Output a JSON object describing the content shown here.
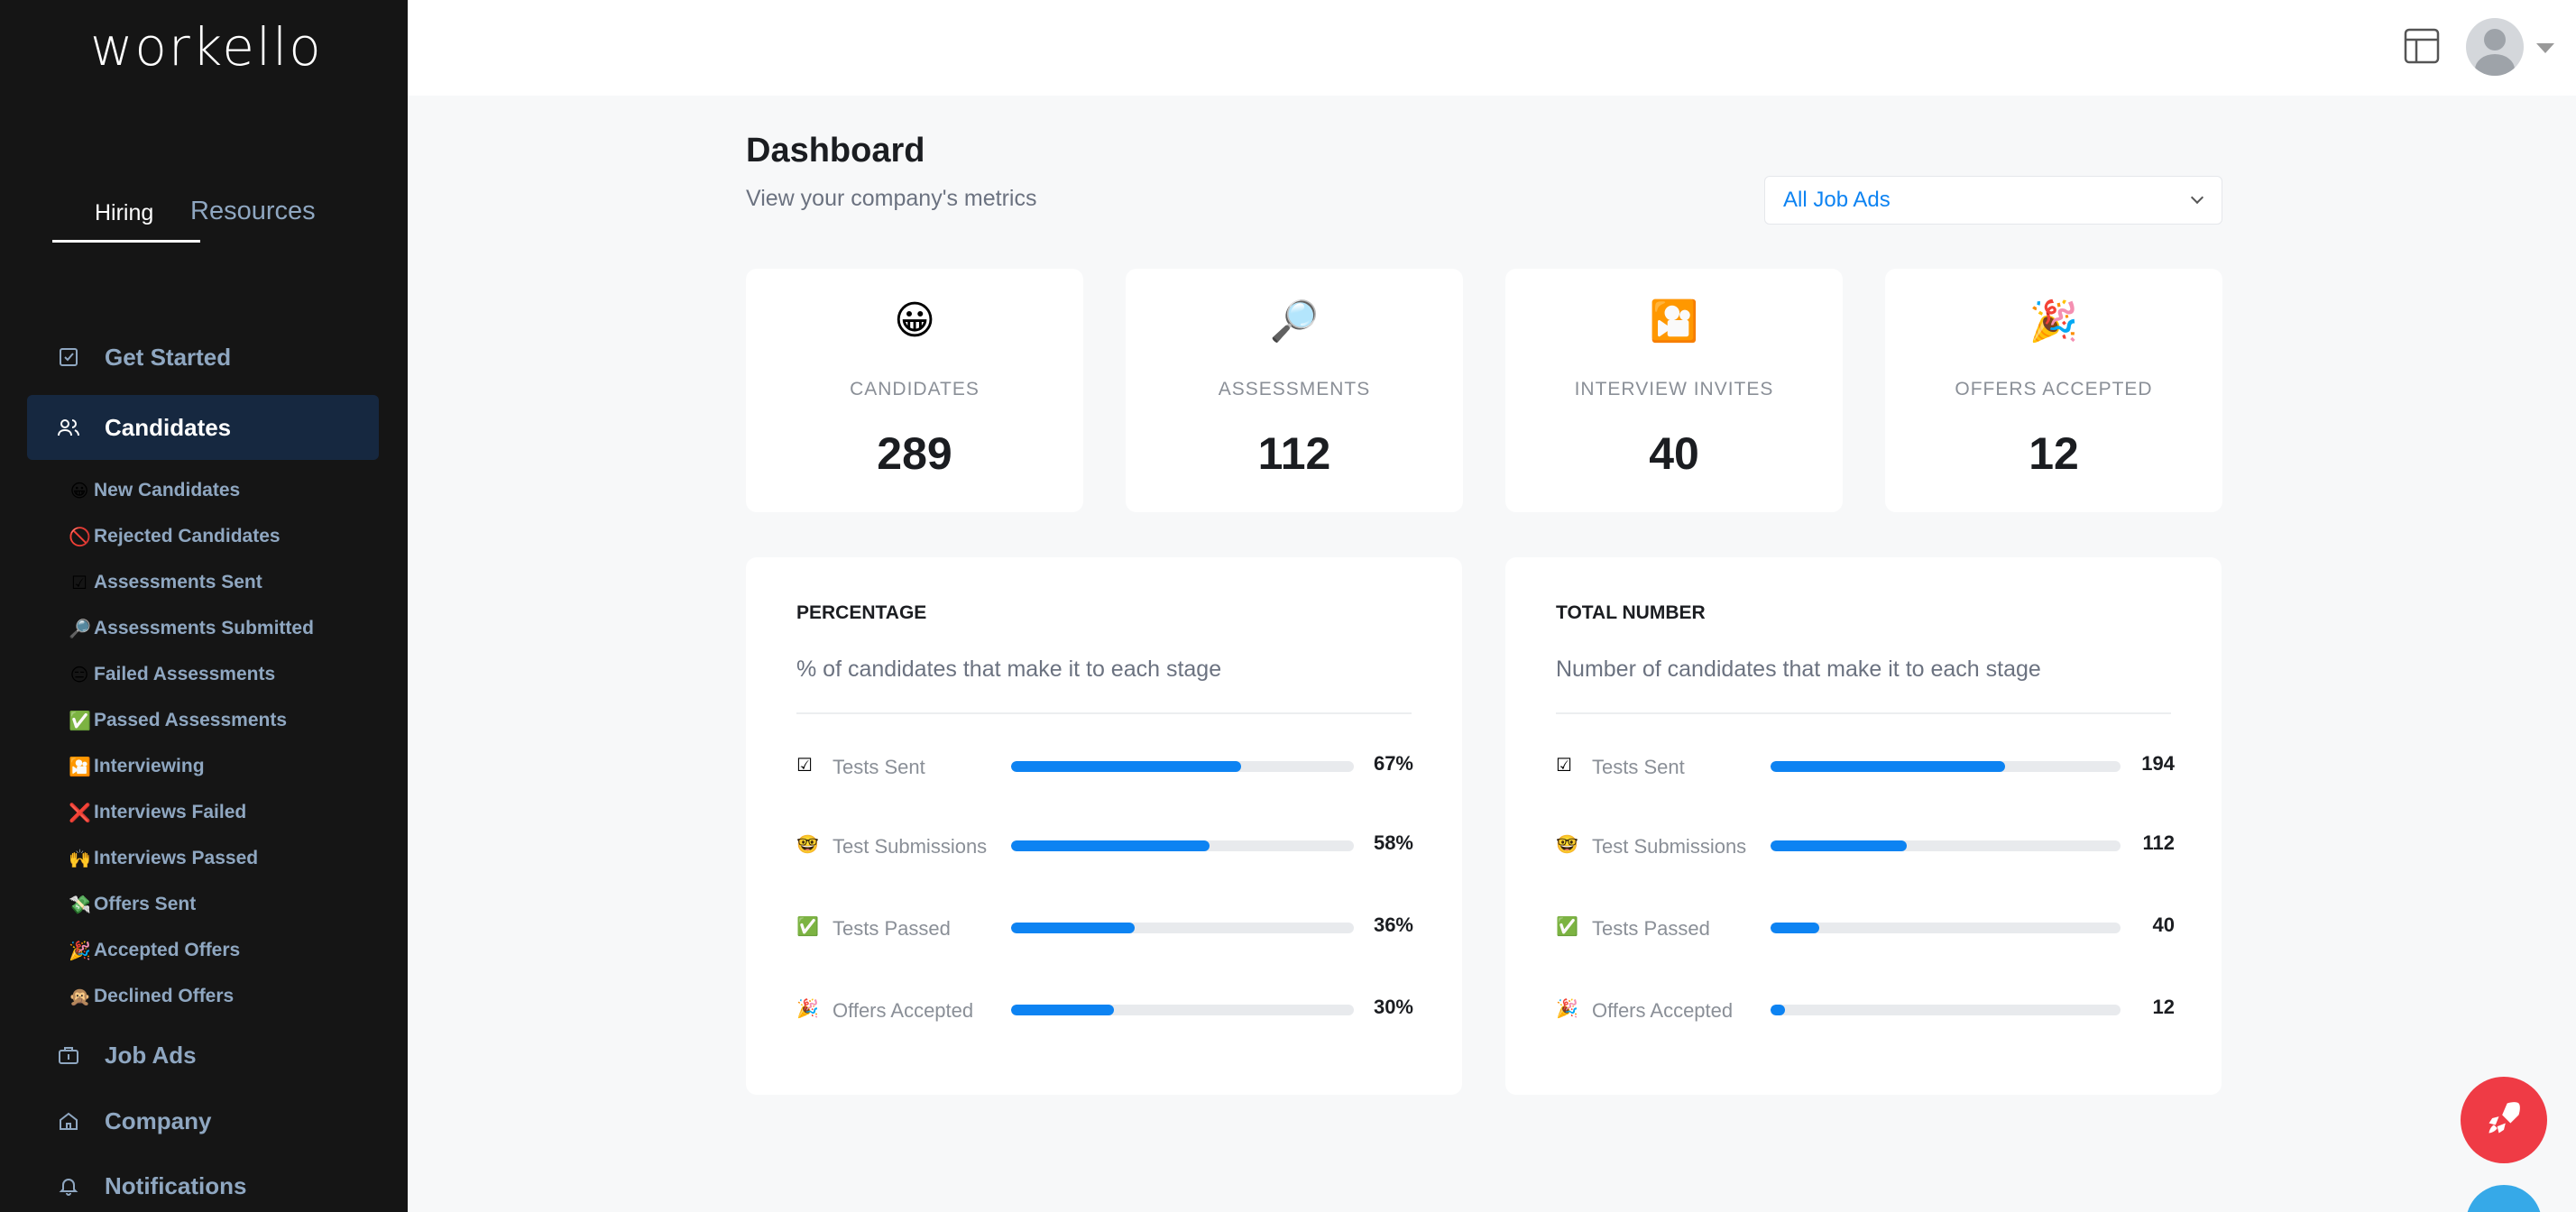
{
  "brand": {
    "logo": "workello"
  },
  "sidebar": {
    "tabs": [
      {
        "label": "Hiring",
        "active": true
      },
      {
        "label": "Resources",
        "active": false
      }
    ],
    "nav": {
      "get_started": "Get Started",
      "candidates": "Candidates",
      "job_ads": "Job Ads",
      "company": "Company",
      "notifications": "Notifications"
    },
    "sub_items": [
      {
        "emoji": "😀",
        "label": "New Candidates"
      },
      {
        "emoji": "🚫",
        "label": "Rejected Candidates"
      },
      {
        "emoji": "☑",
        "label": "Assessments Sent"
      },
      {
        "emoji": "🔎",
        "label": "Assessments Submitted"
      },
      {
        "emoji": "😑",
        "label": "Failed Assessments"
      },
      {
        "emoji": "✅",
        "label": "Passed Assessments"
      },
      {
        "emoji": "🎦",
        "label": "Interviewing"
      },
      {
        "emoji": "❌",
        "label": "Interviews Failed"
      },
      {
        "emoji": "🙌",
        "label": "Interviews Passed"
      },
      {
        "emoji": "💸",
        "label": "Offers Sent"
      },
      {
        "emoji": "🎉",
        "label": "Accepted Offers"
      },
      {
        "emoji": "🙊",
        "label": "Declined Offers"
      }
    ]
  },
  "header": {
    "title": "Dashboard",
    "subtitle": "View your company's metrics",
    "job_filter": "All Job Ads"
  },
  "stats": [
    {
      "emoji": "😀",
      "label": "CANDIDATES",
      "value": "289"
    },
    {
      "emoji": "🔎",
      "label": "ASSESSMENTS",
      "value": "112"
    },
    {
      "emoji": "🎦",
      "label": "INTERVIEW INVITES",
      "value": "40"
    },
    {
      "emoji": "🎉",
      "label": "OFFERS ACCEPTED",
      "value": "12"
    }
  ],
  "percentage_panel": {
    "title": "PERCENTAGE",
    "subtitle": "% of candidates that make it to each stage",
    "rows": [
      {
        "emoji": "☑",
        "label": "Tests Sent",
        "value": "67%",
        "fill": 0.67
      },
      {
        "emoji": "🤓",
        "label": "Test Submissions",
        "value": "58%",
        "fill": 0.58
      },
      {
        "emoji": "✅",
        "label": "Tests Passed",
        "value": "36%",
        "fill": 0.36
      },
      {
        "emoji": "🎉",
        "label": "Offers Accepted",
        "value": "30%",
        "fill": 0.3
      }
    ]
  },
  "total_panel": {
    "title": "TOTAL NUMBER",
    "subtitle": "Number of candidates that make it to each stage",
    "rows": [
      {
        "emoji": "☑",
        "label": "Tests Sent",
        "value": "194",
        "fill": 0.67
      },
      {
        "emoji": "🤓",
        "label": "Test Submissions",
        "value": "112",
        "fill": 0.39
      },
      {
        "emoji": "✅",
        "label": "Tests Passed",
        "value": "40",
        "fill": 0.14
      },
      {
        "emoji": "🎉",
        "label": "Offers Accepted",
        "value": "12",
        "fill": 0.04
      }
    ]
  },
  "colors": {
    "accent": "#0d83f2",
    "sidebar_bg": "#151515",
    "fab": "#ef3b45"
  }
}
